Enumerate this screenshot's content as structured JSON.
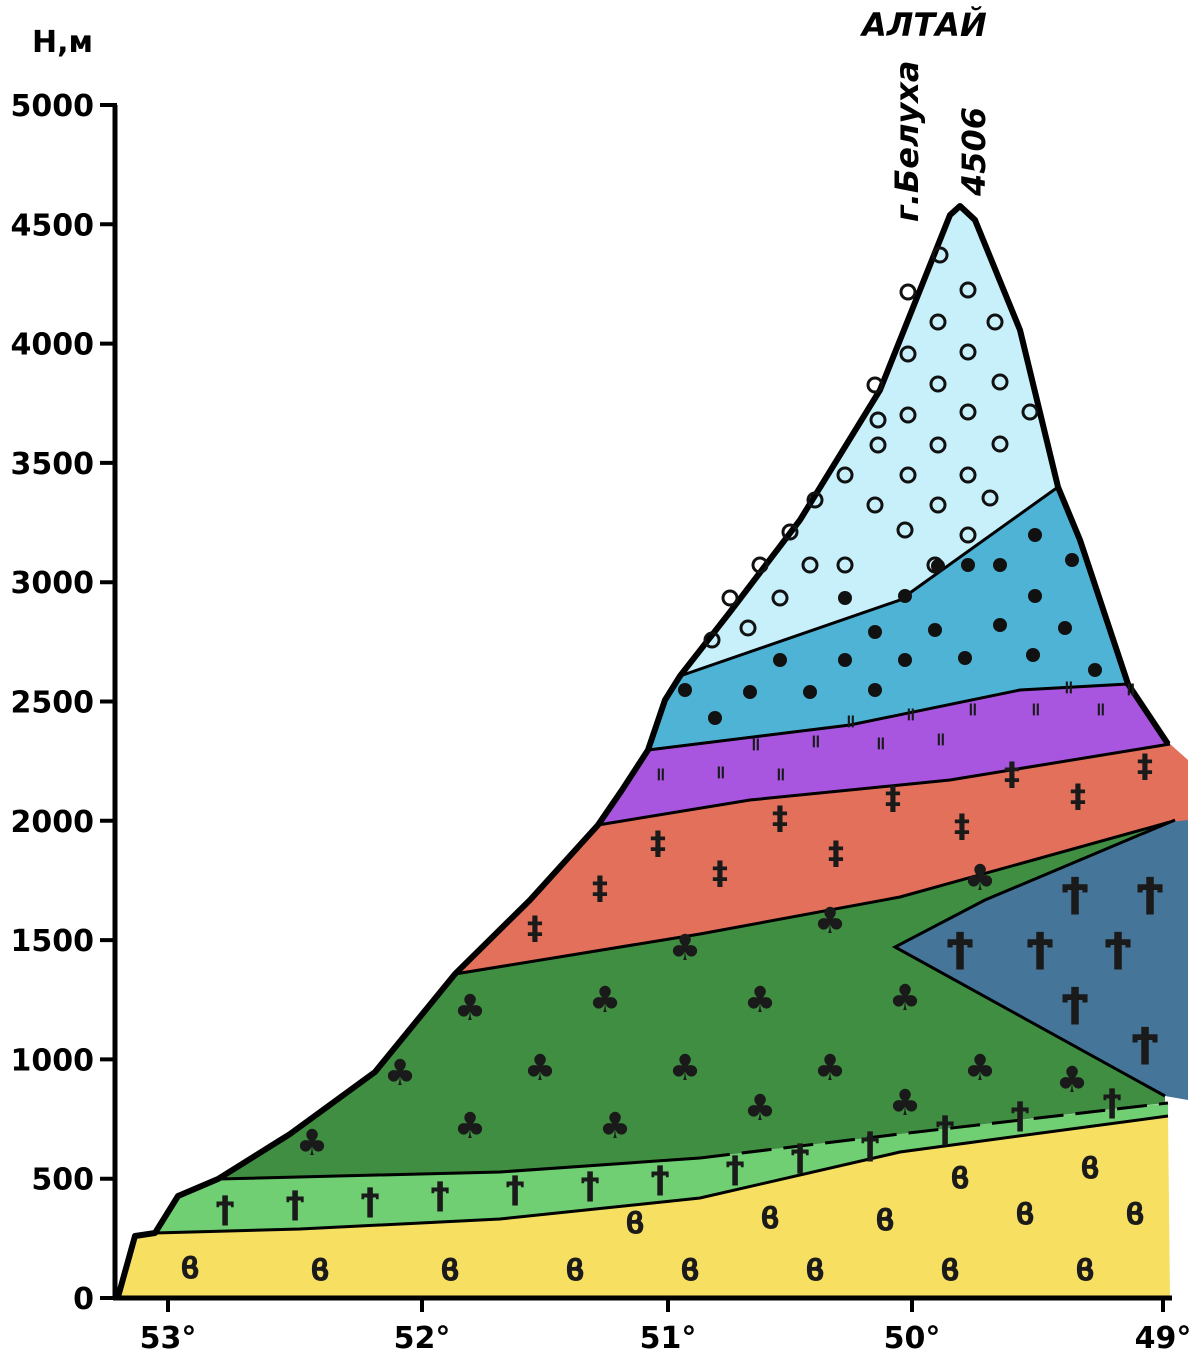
{
  "chart_data": {
    "type": "diagram",
    "title": "АЛТАЙ",
    "ylabel": "Н,м",
    "xlabel": "",
    "peak_name": "г.Белуха",
    "peak_height": "4506",
    "ylim": [
      0,
      5000
    ],
    "yticks": [
      "0",
      "500",
      "1000",
      "1500",
      "2000",
      "2500",
      "3000",
      "3500",
      "4000",
      "4500",
      "5000"
    ],
    "xticks": [
      "53°",
      "52°",
      "51°",
      "50°",
      "49°"
    ],
    "zones": [
      {
        "id": "steppe",
        "color": "#f7df62",
        "symbol": "ϐ"
      },
      {
        "id": "forest-steppe",
        "color": "#6fcf72",
        "symbol": "ϯ"
      },
      {
        "id": "taiga",
        "color": "#3f8e42",
        "symbol": "♣"
      },
      {
        "id": "highland-steppe",
        "color": "#45769a",
        "symbol": "Ϯ"
      },
      {
        "id": "subalpine",
        "color": "#e2705a",
        "symbol": "‡"
      },
      {
        "id": "alpine-meadow",
        "color": "#a855e0",
        "symbol": "॥"
      },
      {
        "id": "tundra",
        "color": "#4fb3d6",
        "symbol": "●"
      },
      {
        "id": "nival",
        "color": "#c8f0fa",
        "symbol": "○"
      }
    ]
  }
}
